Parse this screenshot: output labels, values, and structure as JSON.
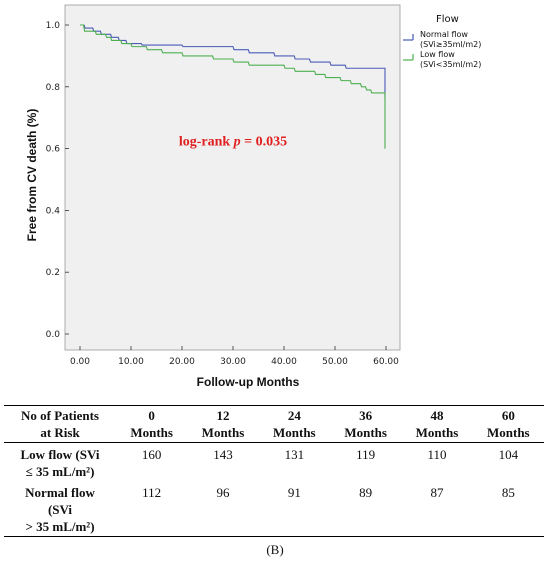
{
  "chart_data": {
    "type": "line",
    "title": "",
    "xlabel": "Follow-up Months",
    "ylabel": "Free from CV death (%)",
    "xlim": [
      0,
      60
    ],
    "ylim": [
      0,
      1.0
    ],
    "x_ticks": [
      "0.00",
      "10.00",
      "20.00",
      "30.00",
      "40.00",
      "50.00",
      "60.00"
    ],
    "y_ticks": [
      "0.0",
      "0.2",
      "0.4",
      "0.6",
      "0.8",
      "1.0"
    ],
    "grid": false,
    "legend": {
      "title": "Flow",
      "placement": "top-right outside",
      "entries": [
        [
          "Normal flow",
          "(SVi≥35ml/m2)"
        ],
        [
          "Low flow",
          "(SVi<35ml/m2)"
        ]
      ]
    },
    "series": [
      {
        "name": "Normal flow (SVi≥35ml/m2)",
        "color": "#4a5bb8",
        "points": [
          [
            0,
            1.0
          ],
          [
            0.8,
            1.0
          ],
          [
            1,
            0.99
          ],
          [
            2.5,
            0.99
          ],
          [
            2.7,
            0.98
          ],
          [
            4,
            0.98
          ],
          [
            4.2,
            0.97
          ],
          [
            6,
            0.97
          ],
          [
            6.2,
            0.96
          ],
          [
            7.5,
            0.96
          ],
          [
            7.7,
            0.95
          ],
          [
            9,
            0.95
          ],
          [
            9.2,
            0.94
          ],
          [
            12,
            0.94
          ],
          [
            12.2,
            0.935
          ],
          [
            20,
            0.935
          ],
          [
            20.2,
            0.93
          ],
          [
            30,
            0.93
          ],
          [
            30.2,
            0.92
          ],
          [
            33,
            0.92
          ],
          [
            33.2,
            0.91
          ],
          [
            38,
            0.91
          ],
          [
            38.2,
            0.9
          ],
          [
            42,
            0.9
          ],
          [
            42.2,
            0.89
          ],
          [
            45,
            0.89
          ],
          [
            45.2,
            0.88
          ],
          [
            49,
            0.88
          ],
          [
            49.2,
            0.87
          ],
          [
            52,
            0.87
          ],
          [
            52.2,
            0.86
          ],
          [
            59.8,
            0.86
          ],
          [
            59.8,
            0.76
          ]
        ]
      },
      {
        "name": "Low flow (SVi<35ml/m2)",
        "color": "#4caf50",
        "points": [
          [
            0,
            1.0
          ],
          [
            0.7,
            1.0
          ],
          [
            0.9,
            0.98
          ],
          [
            3,
            0.98
          ],
          [
            3.2,
            0.97
          ],
          [
            5,
            0.97
          ],
          [
            5.2,
            0.96
          ],
          [
            6,
            0.96
          ],
          [
            6.2,
            0.95
          ],
          [
            8,
            0.95
          ],
          [
            8.2,
            0.94
          ],
          [
            10,
            0.94
          ],
          [
            10.2,
            0.93
          ],
          [
            13,
            0.93
          ],
          [
            13.2,
            0.92
          ],
          [
            16,
            0.92
          ],
          [
            16.2,
            0.91
          ],
          [
            20,
            0.91
          ],
          [
            20.2,
            0.9
          ],
          [
            26,
            0.9
          ],
          [
            26.2,
            0.89
          ],
          [
            30,
            0.89
          ],
          [
            30.2,
            0.88
          ],
          [
            33,
            0.88
          ],
          [
            33.2,
            0.87
          ],
          [
            40,
            0.87
          ],
          [
            40.2,
            0.86
          ],
          [
            42,
            0.86
          ],
          [
            42.2,
            0.85
          ],
          [
            46,
            0.85
          ],
          [
            46.2,
            0.84
          ],
          [
            48,
            0.84
          ],
          [
            48.2,
            0.83
          ],
          [
            51,
            0.83
          ],
          [
            51.2,
            0.82
          ],
          [
            53,
            0.82
          ],
          [
            53.2,
            0.81
          ],
          [
            55,
            0.81
          ],
          [
            55.2,
            0.8
          ],
          [
            56,
            0.8
          ],
          [
            56.2,
            0.79
          ],
          [
            57,
            0.79
          ],
          [
            57.2,
            0.78
          ],
          [
            59.8,
            0.78
          ],
          [
            59.8,
            0.6
          ]
        ]
      }
    ],
    "annotation": {
      "text_prefix": "log-rank ",
      "text_p": "p",
      "text_suffix": " = 0.035",
      "color": "#e02020",
      "x": 30,
      "y": 0.61
    }
  },
  "risk_table": {
    "header": [
      {
        "top": "No of Patients",
        "bottom": "at Risk"
      },
      {
        "top": "0",
        "bottom": "Months"
      },
      {
        "top": "12",
        "bottom": "Months"
      },
      {
        "top": "24",
        "bottom": "Months"
      },
      {
        "top": "36",
        "bottom": "Months"
      },
      {
        "top": "48",
        "bottom": "Months"
      },
      {
        "top": "60",
        "bottom": "Months"
      }
    ],
    "rows": [
      {
        "label_lines": [
          "Low flow (SVi",
          "≤ 35 mL/m²)"
        ],
        "values": [
          "160",
          "143",
          "131",
          "119",
          "110",
          "104"
        ]
      },
      {
        "label_lines": [
          "Normal flow",
          "(SVi",
          "> 35 mL/m²)"
        ],
        "values": [
          "112",
          "96",
          "91",
          "89",
          "87",
          "85"
        ]
      }
    ]
  },
  "caption": "(B)"
}
